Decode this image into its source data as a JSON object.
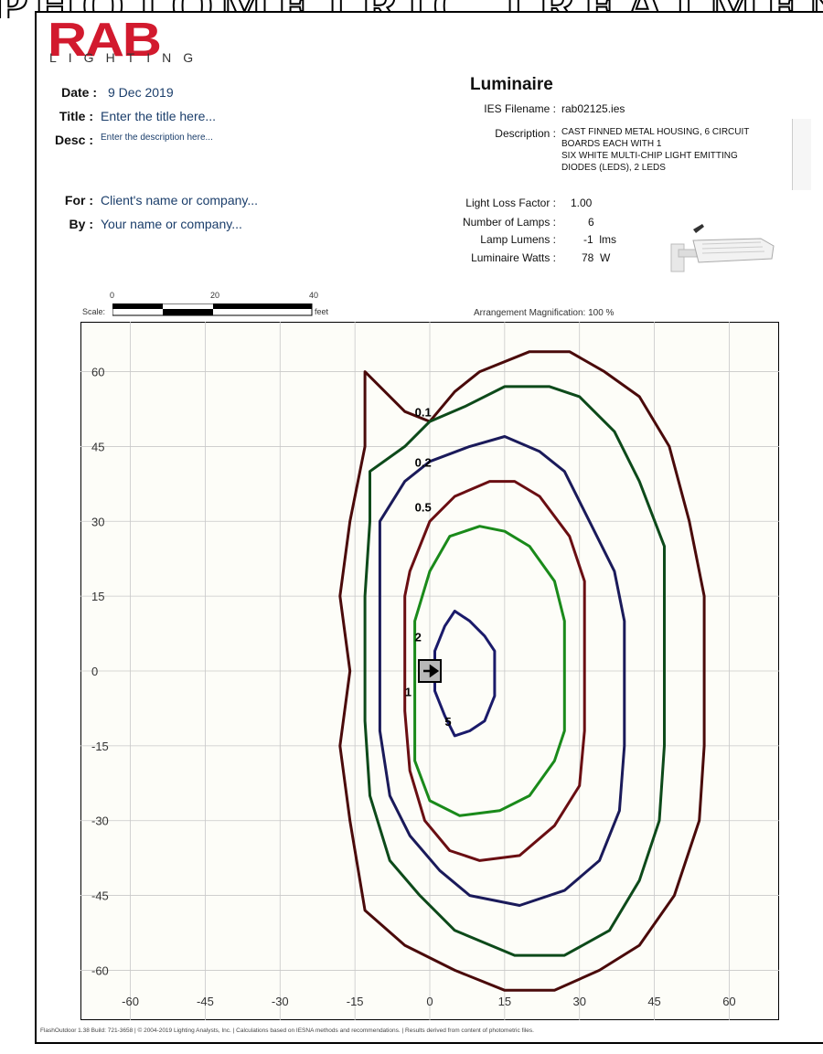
{
  "banner": {
    "text": "PHOTOMETRIC TREATMENT PLAN"
  },
  "logo": {
    "brand": "RAB",
    "sub": "LIGHTING",
    "color": "#d21a2e"
  },
  "header": {
    "date_label": "Date :",
    "date": "9 Dec 2019",
    "title_label": "Title :",
    "title": "Enter the title here...",
    "desc_label": "Desc :",
    "desc": "Enter the description here...",
    "for_label": "For :",
    "for": "Client's name or company...",
    "by_label": "By :",
    "by": "Your name or company..."
  },
  "luminaire": {
    "heading": "Luminaire",
    "ies_label": "IES Filename :",
    "ies": "rab02125.ies",
    "desc_label": "Description :",
    "desc_lines": [
      "CAST FINNED METAL HOUSING, 6 CIRCUIT",
      "BOARDS EACH WITH 1",
      "SIX WHITE MULTI-CHIP LIGHT EMITTING",
      "DIODES (LEDS), 2 LEDS"
    ],
    "llf_label": "Light Loss Factor :",
    "llf": "1.00",
    "lamps_label": "Number of Lamps :",
    "lamps": "6",
    "lumens_label": "Lamp Lumens :",
    "lumens": "-1  lms",
    "watts_label": "Luminaire Watts :",
    "watts": "78  W"
  },
  "scale": {
    "label": "Scale:",
    "unit": "feet",
    "ticks": [
      "0",
      "20",
      "40"
    ]
  },
  "magnification": {
    "label": "Arrangement Magnification:",
    "value": "100 %"
  },
  "chart_data": {
    "type": "contour",
    "xlim": [
      -70,
      70
    ],
    "ylim": [
      -70,
      70
    ],
    "x_ticks": [
      -60,
      -45,
      -30,
      -15,
      0,
      15,
      30,
      45,
      60
    ],
    "y_ticks": [
      60,
      45,
      30,
      15,
      0,
      -15,
      -30,
      -45,
      -60
    ],
    "grid": true,
    "contours": [
      {
        "name": "0.1",
        "color": "#4a0a0a",
        "points": [
          [
            -13,
            60
          ],
          [
            -5,
            52
          ],
          [
            0,
            50
          ],
          [
            5,
            56
          ],
          [
            10,
            60
          ],
          [
            20,
            64
          ],
          [
            28,
            64
          ],
          [
            35,
            60
          ],
          [
            42,
            55
          ],
          [
            48,
            45
          ],
          [
            52,
            30
          ],
          [
            55,
            15
          ],
          [
            55,
            0
          ],
          [
            55,
            -15
          ],
          [
            54,
            -30
          ],
          [
            49,
            -45
          ],
          [
            42,
            -55
          ],
          [
            34,
            -60
          ],
          [
            25,
            -64
          ],
          [
            15,
            -64
          ],
          [
            5,
            -60
          ],
          [
            -5,
            -55
          ],
          [
            -13,
            -48
          ],
          [
            -16,
            -30
          ],
          [
            -18,
            -15
          ],
          [
            -16,
            0
          ],
          [
            -18,
            15
          ],
          [
            -16,
            30
          ],
          [
            -13,
            45
          ]
        ]
      },
      {
        "name": "0.2",
        "color": "#0d4a1a",
        "points": [
          [
            -12,
            40
          ],
          [
            -5,
            45
          ],
          [
            0,
            50
          ],
          [
            7,
            53
          ],
          [
            15,
            57
          ],
          [
            24,
            57
          ],
          [
            30,
            55
          ],
          [
            37,
            48
          ],
          [
            42,
            38
          ],
          [
            47,
            25
          ],
          [
            47,
            10
          ],
          [
            47,
            0
          ],
          [
            47,
            -15
          ],
          [
            46,
            -30
          ],
          [
            42,
            -42
          ],
          [
            36,
            -52
          ],
          [
            27,
            -57
          ],
          [
            17,
            -57
          ],
          [
            5,
            -52
          ],
          [
            -2,
            -45
          ],
          [
            -8,
            -38
          ],
          [
            -12,
            -25
          ],
          [
            -13,
            -10
          ],
          [
            -13,
            0
          ],
          [
            -13,
            15
          ],
          [
            -12,
            30
          ]
        ]
      },
      {
        "name": "0.5",
        "color": "#1a1a5a",
        "points": [
          [
            -10,
            30
          ],
          [
            -5,
            38
          ],
          [
            0,
            42
          ],
          [
            8,
            45
          ],
          [
            15,
            47
          ],
          [
            22,
            44
          ],
          [
            27,
            40
          ],
          [
            32,
            30
          ],
          [
            37,
            20
          ],
          [
            39,
            10
          ],
          [
            39,
            0
          ],
          [
            39,
            -15
          ],
          [
            38,
            -28
          ],
          [
            34,
            -38
          ],
          [
            27,
            -44
          ],
          [
            18,
            -47
          ],
          [
            8,
            -45
          ],
          [
            2,
            -40
          ],
          [
            -4,
            -33
          ],
          [
            -8,
            -25
          ],
          [
            -10,
            -12
          ],
          [
            -10,
            0
          ],
          [
            -10,
            15
          ]
        ]
      },
      {
        "name": "1",
        "color": "#6a0e12",
        "points": [
          [
            -4,
            20
          ],
          [
            0,
            30
          ],
          [
            5,
            35
          ],
          [
            12,
            38
          ],
          [
            17,
            38
          ],
          [
            22,
            35
          ],
          [
            28,
            27
          ],
          [
            31,
            18
          ],
          [
            31,
            8
          ],
          [
            31,
            0
          ],
          [
            31,
            -12
          ],
          [
            30,
            -23
          ],
          [
            25,
            -31
          ],
          [
            18,
            -37
          ],
          [
            10,
            -38
          ],
          [
            4,
            -36
          ],
          [
            -1,
            -30
          ],
          [
            -4,
            -20
          ],
          [
            -5,
            -8
          ],
          [
            -5,
            5
          ],
          [
            -5,
            15
          ]
        ]
      },
      {
        "name": "2",
        "color": "#1a8a1a",
        "points": [
          [
            -3,
            10
          ],
          [
            0,
            20
          ],
          [
            4,
            27
          ],
          [
            10,
            29
          ],
          [
            15,
            28
          ],
          [
            20,
            25
          ],
          [
            25,
            18
          ],
          [
            27,
            10
          ],
          [
            27,
            0
          ],
          [
            27,
            -12
          ],
          [
            25,
            -18
          ],
          [
            20,
            -25
          ],
          [
            14,
            -28
          ],
          [
            6,
            -29
          ],
          [
            0,
            -26
          ],
          [
            -3,
            -18
          ],
          [
            -3,
            -8
          ],
          [
            -3,
            0
          ]
        ]
      },
      {
        "name": "5",
        "color": "#1a1a6a",
        "points": [
          [
            1,
            4
          ],
          [
            3,
            9
          ],
          [
            5,
            12
          ],
          [
            8,
            10
          ],
          [
            11,
            7
          ],
          [
            13,
            4
          ],
          [
            13,
            -5
          ],
          [
            11,
            -10
          ],
          [
            8,
            -12
          ],
          [
            5,
            -13
          ],
          [
            3,
            -9
          ],
          [
            1,
            -4
          ],
          [
            1,
            0
          ]
        ]
      }
    ],
    "contour_labels": [
      {
        "text": "0.1",
        "x": -3,
        "y": 51
      },
      {
        "text": "0.2",
        "x": -3,
        "y": 41
      },
      {
        "text": "0.5",
        "x": -3,
        "y": 32
      },
      {
        "text": "2",
        "x": -3,
        "y": 6
      },
      {
        "text": "1",
        "x": -5,
        "y": -5
      },
      {
        "text": "5",
        "x": 3,
        "y": -11
      }
    ],
    "luminaire_marker": {
      "x": 0,
      "y": 0
    }
  },
  "footer": "FlashOutdoor 1.38  Build: 721-3658   |   © 2004-2019 Lighting Analysts, Inc.   |   Calculations based on IESNA methods and recommendations.   |   Results derived from content of photometric files."
}
